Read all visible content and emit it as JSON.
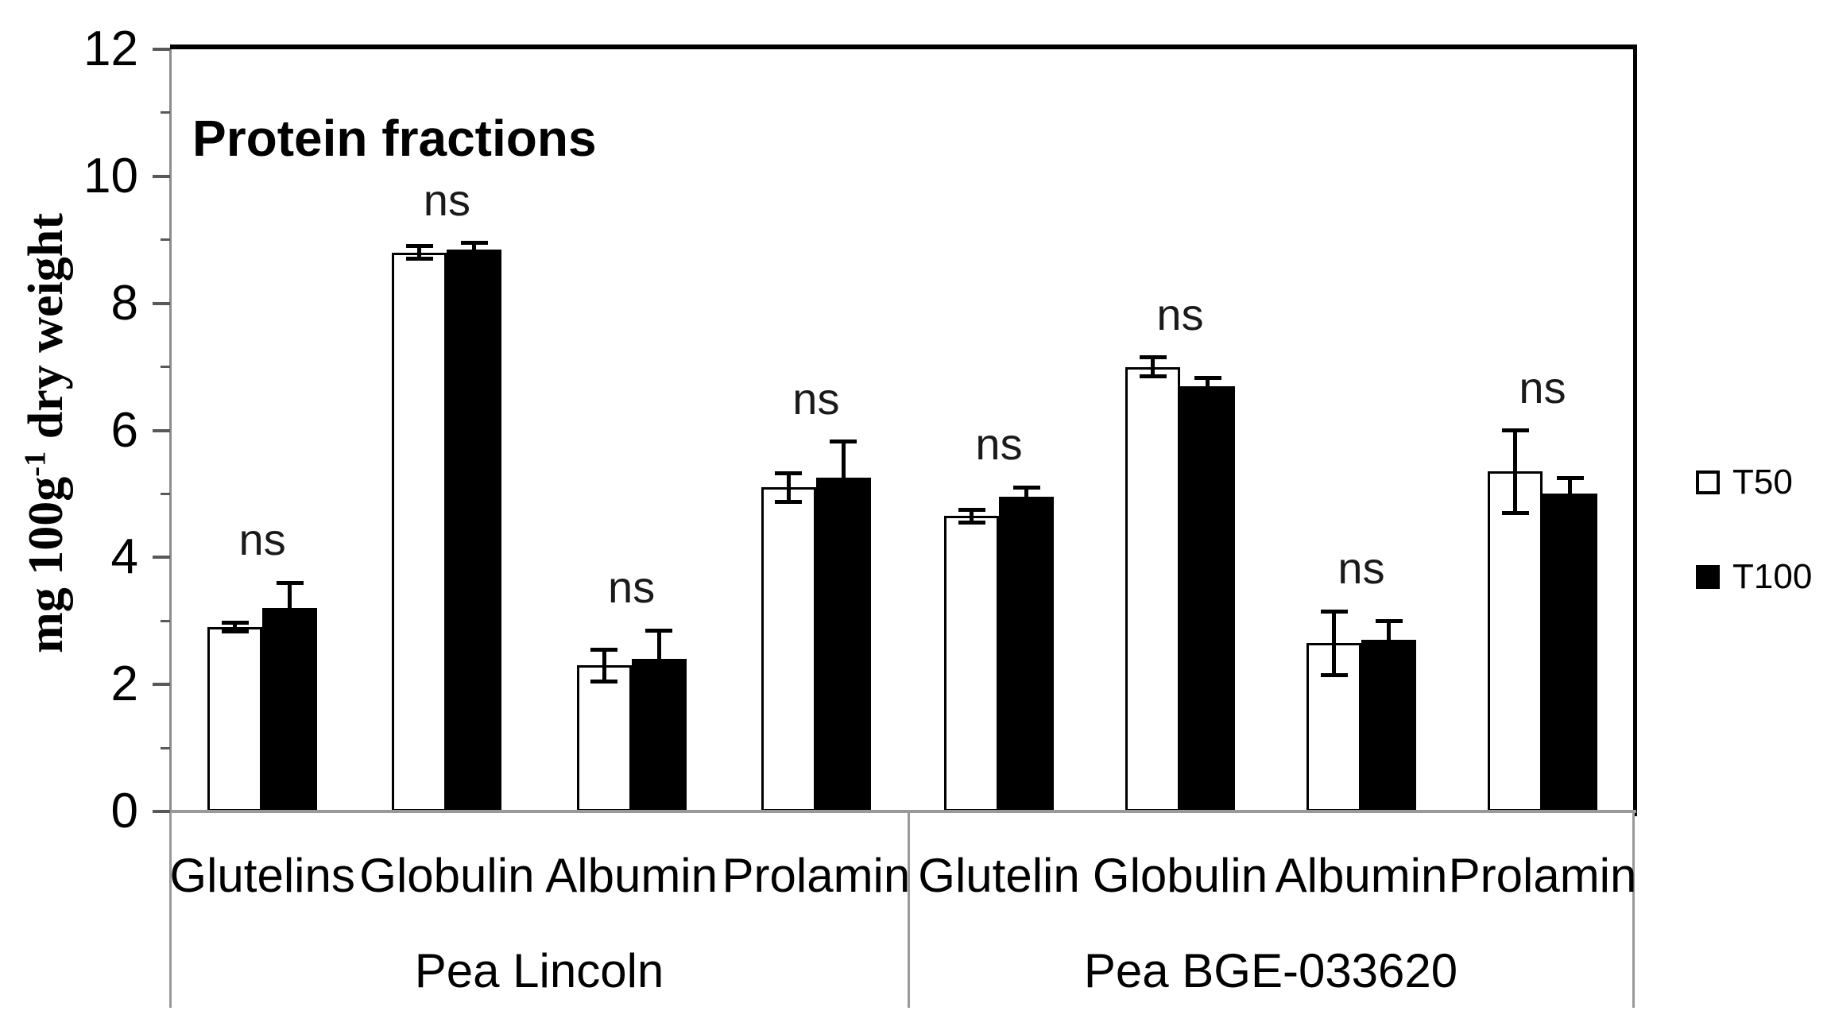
{
  "chart_data": {
    "type": "bar",
    "title": "Protein fractions",
    "ylabel": "mg 100g⁻¹ dry weight",
    "ylabel_parts": {
      "prefix": "mg 100g",
      "sup": "-1",
      "suffix": " dry weight"
    },
    "ylim": [
      0,
      12
    ],
    "y_major_step": 2,
    "y_minor_step": 1,
    "y_tick_labels": [
      "0",
      "2",
      "4",
      "6",
      "8",
      "10",
      "12"
    ],
    "grid": false,
    "legend_position": "right",
    "sig_annotation_text": "ns",
    "groups": [
      {
        "label": "Pea Lincoln",
        "categories": [
          "Glutelins",
          "Globulin",
          "Albumin",
          "Prolamin"
        ]
      },
      {
        "label": "Pea BGE-033620",
        "categories": [
          "Glutelin",
          "Globulin",
          "Albumin",
          "Prolamin"
        ]
      }
    ],
    "categories_flat": [
      "Glutelins",
      "Globulin",
      "Albumin",
      "Prolamin",
      "Glutelin",
      "Globulin",
      "Albumin",
      "Prolamin"
    ],
    "series": [
      {
        "name": "T50",
        "fill": "#ffffff",
        "values": [
          2.9,
          8.8,
          2.3,
          5.1,
          4.65,
          7.0,
          2.65,
          5.35
        ],
        "errors": [
          0.07,
          0.1,
          0.25,
          0.22,
          0.1,
          0.15,
          0.5,
          0.65
        ]
      },
      {
        "name": "T100",
        "fill": "#000000",
        "values": [
          3.2,
          8.85,
          2.4,
          5.25,
          4.95,
          6.7,
          2.7,
          5.0
        ],
        "errors": [
          0.4,
          0.1,
          0.45,
          0.57,
          0.15,
          0.12,
          0.3,
          0.25
        ]
      }
    ],
    "annotations": [
      "ns",
      "ns",
      "ns",
      "ns",
      "ns",
      "ns",
      "ns",
      "ns"
    ]
  },
  "colors": {
    "plot_border": "#000000",
    "axis_gray": "#999999",
    "tick_gray": "#595959",
    "bar_outline": "#000000",
    "background": "#ffffff"
  }
}
